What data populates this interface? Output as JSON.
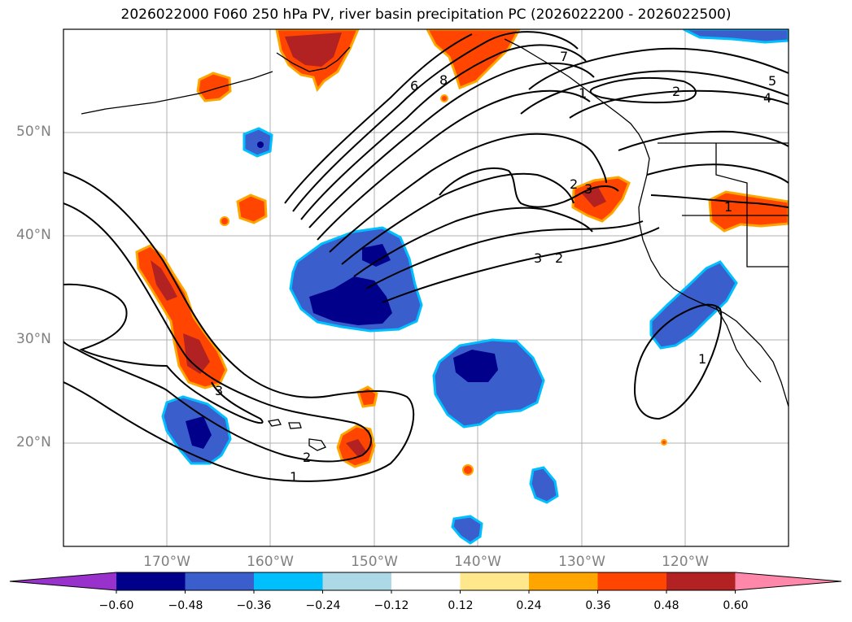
{
  "title": "2026022000 F060 250 hPa PV, river basin precipitation PC (2026022200 - 2026022500)",
  "lat_labels": [
    "50°N",
    "40°N",
    "30°N",
    "20°N"
  ],
  "lon_labels": [
    "170°W",
    "160°W",
    "150°W",
    "140°W",
    "130°W",
    "120°W"
  ],
  "contour_labels": [
    "1",
    "2",
    "3",
    "6",
    "8",
    "7",
    "2",
    "5",
    "4",
    "3",
    "2",
    "1",
    "1",
    "1",
    "2",
    "3"
  ],
  "colorbar": {
    "colors": [
      "#9932cc",
      "#00008b",
      "#3a5fcd",
      "#00bfff",
      "#add8e6",
      "#ffffff",
      "#ffe88b",
      "#ffa500",
      "#ff4500",
      "#b22222",
      "#ff88aa"
    ],
    "tick_labels": [
      "−0.60",
      "−0.48",
      "−0.36",
      "−0.24",
      "−0.12",
      "0.12",
      "0.24",
      "0.36",
      "0.48",
      "0.60"
    ]
  },
  "palette": {
    "pos_light": "#ffe88b",
    "pos_mid": "#ffa500",
    "pos_strong": "#ff4500",
    "pos_max": "#b22222",
    "neg_light": "#00bfff",
    "neg_mid": "#3a5fcd",
    "neg_max": "#00008b",
    "grid": "#b0b0b0"
  }
}
